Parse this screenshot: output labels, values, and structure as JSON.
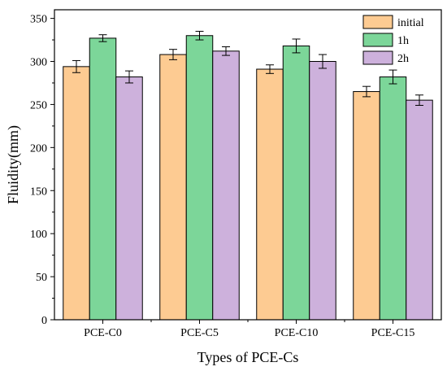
{
  "chart_data": {
    "type": "bar",
    "title": "",
    "xlabel": "Types of PCE-Cs",
    "ylabel": "Fluidity(mm)",
    "categories": [
      "PCE-C0",
      "PCE-C5",
      "PCE-C10",
      "PCE-C15"
    ],
    "ylim": [
      0,
      360
    ],
    "yticks": [
      0,
      50,
      100,
      150,
      200,
      250,
      300,
      350
    ],
    "grid": false,
    "legend_position": "top-right",
    "series": [
      {
        "name": "initial",
        "color": "#FDCB92",
        "values": [
          294,
          308,
          291,
          265
        ],
        "errors": [
          7,
          6,
          5,
          6
        ]
      },
      {
        "name": "1h",
        "color": "#7CD699",
        "values": [
          327,
          330,
          318,
          282
        ],
        "errors": [
          4,
          5,
          8,
          8
        ]
      },
      {
        "name": "2h",
        "color": "#CDB1DC",
        "values": [
          282,
          312,
          300,
          255
        ],
        "errors": [
          7,
          5,
          8,
          6
        ]
      }
    ]
  }
}
